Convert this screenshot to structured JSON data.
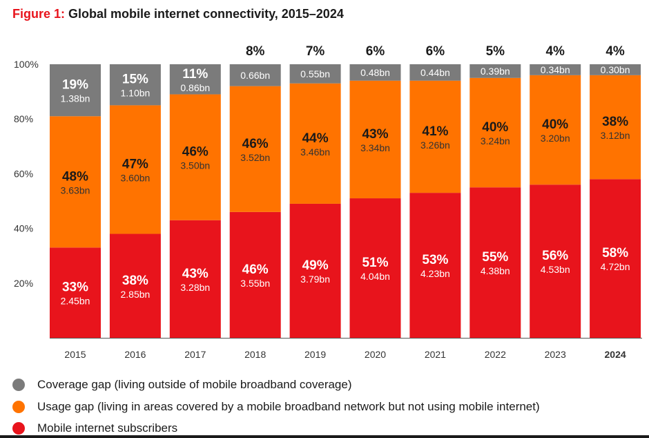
{
  "title": {
    "prefix": "Figure 1:",
    "text": "Global mobile internet connectivity, 2015–2024"
  },
  "chart_data": {
    "type": "bar",
    "stacked": true,
    "normalized_percent": true,
    "categories": [
      "2015",
      "2016",
      "2017",
      "2018",
      "2019",
      "2020",
      "2021",
      "2022",
      "2023",
      "2024"
    ],
    "highlight_category": "2024",
    "y_ticks": [
      "20%",
      "40%",
      "60%",
      "80%",
      "100%"
    ],
    "ylim": [
      0,
      100
    ],
    "grid": false,
    "legend_position": "bottom-left",
    "series": [
      {
        "name": "Mobile internet subscribers",
        "color": "#e8141c",
        "percent": [
          33,
          38,
          43,
          46,
          49,
          51,
          53,
          55,
          56,
          58
        ],
        "percent_labels": [
          "33%",
          "38%",
          "43%",
          "46%",
          "49%",
          "51%",
          "53%",
          "55%",
          "56%",
          "58%"
        ],
        "value_labels": [
          "2.45bn",
          "2.85bn",
          "3.28bn",
          "3.55bn",
          "3.79bn",
          "4.04bn",
          "4.23bn",
          "4.38bn",
          "4.53bn",
          "4.72bn"
        ]
      },
      {
        "name": "Usage gap",
        "color": "#ff7300",
        "percent": [
          48,
          47,
          46,
          46,
          44,
          43,
          41,
          40,
          40,
          38
        ],
        "percent_labels": [
          "48%",
          "47%",
          "46%",
          "46%",
          "44%",
          "43%",
          "41%",
          "40%",
          "40%",
          "38%"
        ],
        "value_labels": [
          "3.63bn",
          "3.60bn",
          "3.50bn",
          "3.52bn",
          "3.46bn",
          "3.34bn",
          "3.26bn",
          "3.24bn",
          "3.20bn",
          "3.12bn"
        ]
      },
      {
        "name": "Coverage gap",
        "color": "#7b7b7b",
        "percent": [
          19,
          15,
          11,
          8,
          7,
          6,
          6,
          5,
          4,
          4
        ],
        "percent_labels": [
          "19%",
          "15%",
          "11%",
          "8%",
          "7%",
          "6%",
          "6%",
          "5%",
          "4%",
          "4%"
        ],
        "value_labels": [
          "1.38bn",
          "1.10bn",
          "0.86bn",
          "0.66bn",
          "0.55bn",
          "0.48bn",
          "0.44bn",
          "0.39bn",
          "0.34bn",
          "0.30bn"
        ]
      }
    ]
  },
  "legend": [
    {
      "label": "Coverage gap (living outside of mobile broadband coverage)",
      "color": "#7b7b7b"
    },
    {
      "label": "Usage gap (living in areas covered by a mobile broadband network but not using mobile internet)",
      "color": "#ff7300"
    },
    {
      "label": "Mobile internet subscribers",
      "color": "#e8141c"
    }
  ]
}
